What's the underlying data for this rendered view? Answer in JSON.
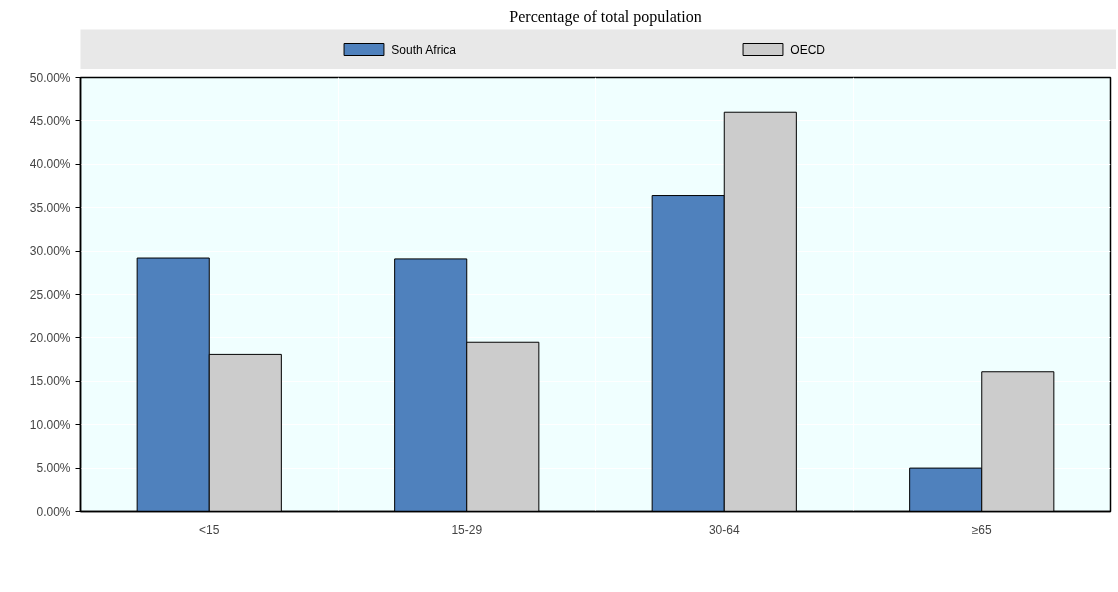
{
  "chart_data": {
    "type": "bar",
    "title": "Percentage of total population",
    "categories": [
      "<15",
      "15-29",
      "30-64",
      "≥65"
    ],
    "series": [
      {
        "name": "South Africa",
        "color": "#4f81bd",
        "values": [
          29.2,
          29.1,
          36.4,
          5.0
        ]
      },
      {
        "name": "OECD",
        "color": "#cccccc",
        "values": [
          18.1,
          19.5,
          46.0,
          16.1
        ]
      }
    ],
    "ylim": [
      0,
      50
    ],
    "yticks": [
      {
        "value": 0,
        "label": "0.00%"
      },
      {
        "value": 5,
        "label": "5.00%"
      },
      {
        "value": 10,
        "label": "10.00%"
      },
      {
        "value": 15,
        "label": "15.00%"
      },
      {
        "value": 20,
        "label": "20.00%"
      },
      {
        "value": 25,
        "label": "25.00%"
      },
      {
        "value": 30,
        "label": "30.00%"
      },
      {
        "value": 35,
        "label": "35.00%"
      },
      {
        "value": 40,
        "label": "40.00%"
      },
      {
        "value": 45,
        "label": "45.00%"
      },
      {
        "value": 50,
        "label": "50.00%"
      }
    ],
    "grid": true,
    "legend": "top"
  }
}
